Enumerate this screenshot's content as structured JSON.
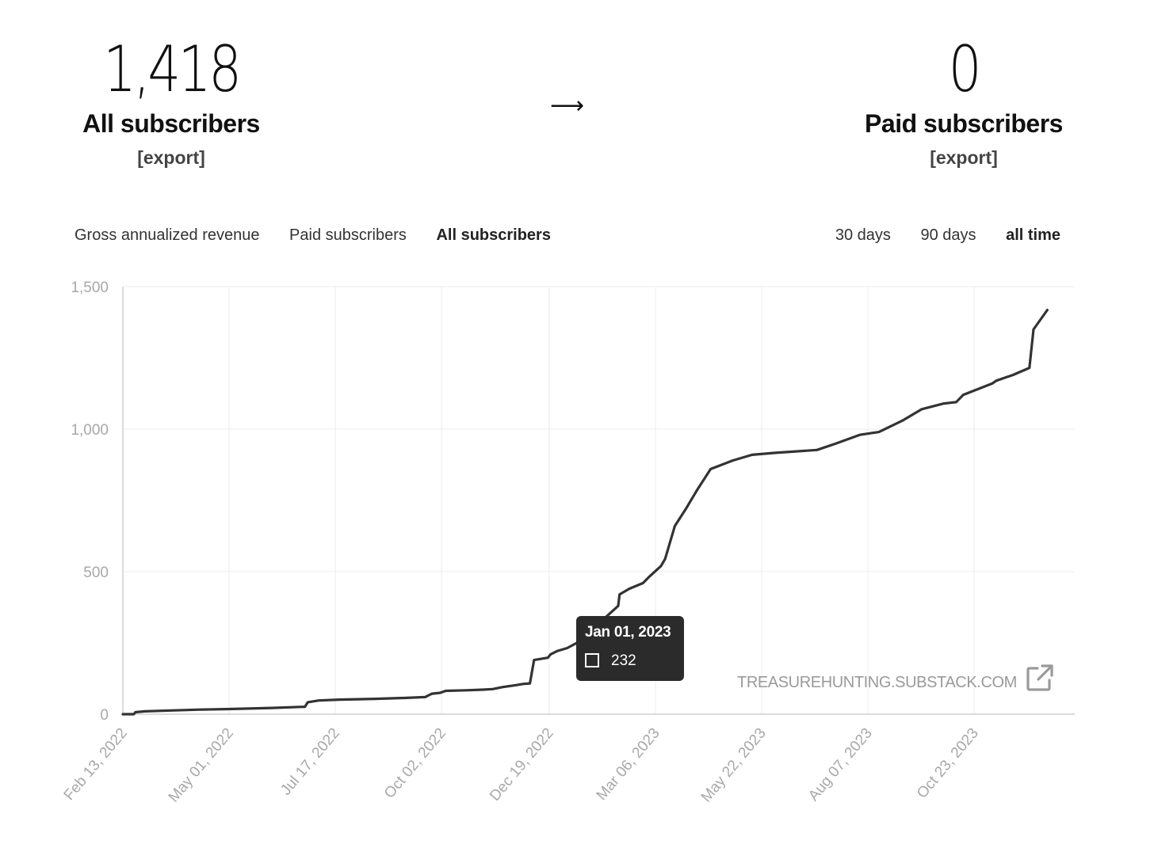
{
  "stats": {
    "all": {
      "value": "1,418",
      "label": "All subscribers",
      "export": "[export]"
    },
    "arrow": "⟶",
    "paid": {
      "value": "0",
      "label": "Paid subscribers",
      "export": "[export]"
    }
  },
  "metric_tabs": [
    {
      "label": "Gross annualized revenue",
      "active": false
    },
    {
      "label": "Paid subscribers",
      "active": false
    },
    {
      "label": "All subscribers",
      "active": true
    }
  ],
  "range_tabs": [
    {
      "label": "30 days",
      "active": false
    },
    {
      "label": "90 days",
      "active": false
    },
    {
      "label": "all time",
      "active": true
    }
  ],
  "tooltip": {
    "date": "Jan 01, 2023",
    "value": "232"
  },
  "watermark": "TREASUREHUNTING.SUBSTACK.COM",
  "icons": {
    "external_link": "external-link-icon"
  },
  "colors": {
    "line": "#333333",
    "tooltip_bg": "#2b2b2b",
    "grid": "#ececec",
    "axis_text": "#a8a8a8"
  },
  "chart_data": {
    "type": "line",
    "title": "",
    "xlabel": "",
    "ylabel": "",
    "ylim": [
      0,
      1500
    ],
    "yticks": [
      0,
      500,
      1000,
      1500
    ],
    "ytick_labels": [
      "0",
      "500",
      "1,000",
      "1,500"
    ],
    "xtick_labels": [
      "Feb 13, 2022",
      "May 01, 2022",
      "Jul 17, 2022",
      "Oct 02, 2022",
      "Dec 19, 2022",
      "Mar 06, 2023",
      "May 22, 2023",
      "Aug 07, 2023",
      "Oct 23, 2023"
    ],
    "xtick_dates": [
      "2022-02-13",
      "2022-05-01",
      "2022-07-17",
      "2022-10-02",
      "2022-12-19",
      "2023-03-06",
      "2023-05-22",
      "2023-08-07",
      "2023-10-23"
    ],
    "grid": true,
    "series": [
      {
        "x": [
          "2022-02-13",
          "2022-02-21",
          "2022-02-22",
          "2022-03-01",
          "2022-03-20",
          "2022-04-10",
          "2022-05-01",
          "2022-06-01",
          "2022-06-25",
          "2022-06-27",
          "2022-07-05",
          "2022-07-20",
          "2022-08-15",
          "2022-09-05",
          "2022-09-20",
          "2022-09-25",
          "2022-10-01",
          "2022-10-05",
          "2022-10-20",
          "2022-11-01",
          "2022-11-08",
          "2022-11-15",
          "2022-11-25",
          "2022-11-30",
          "2022-12-05",
          "2022-12-08",
          "2022-12-18",
          "2022-12-20",
          "2022-12-25",
          "2023-01-01",
          "2023-01-10",
          "2023-01-20",
          "2023-01-30",
          "2023-02-07",
          "2023-02-08",
          "2023-02-15",
          "2023-02-25",
          "2023-03-01",
          "2023-03-10",
          "2023-03-13",
          "2023-03-20",
          "2023-03-28",
          "2023-04-05",
          "2023-04-15",
          "2023-05-01",
          "2023-05-15",
          "2023-06-01",
          "2023-07-01",
          "2023-07-15",
          "2023-08-01",
          "2023-08-15",
          "2023-09-01",
          "2023-09-15",
          "2023-10-01",
          "2023-10-10",
          "2023-10-15",
          "2023-11-05",
          "2023-11-08",
          "2023-11-20",
          "2023-12-02",
          "2023-12-05",
          "2023-12-15"
        ],
        "y": [
          0,
          0,
          7,
          10,
          13,
          16,
          18,
          22,
          26,
          42,
          48,
          51,
          54,
          57,
          60,
          72,
          75,
          82,
          84,
          86,
          88,
          95,
          102,
          106,
          108,
          190,
          198,
          210,
          222,
          232,
          255,
          300,
          345,
          380,
          420,
          440,
          460,
          480,
          520,
          545,
          660,
          720,
          785,
          860,
          890,
          910,
          917,
          927,
          950,
          980,
          990,
          1030,
          1070,
          1090,
          1095,
          1120,
          1160,
          1170,
          1190,
          1215,
          1350,
          1418
        ]
      }
    ]
  }
}
